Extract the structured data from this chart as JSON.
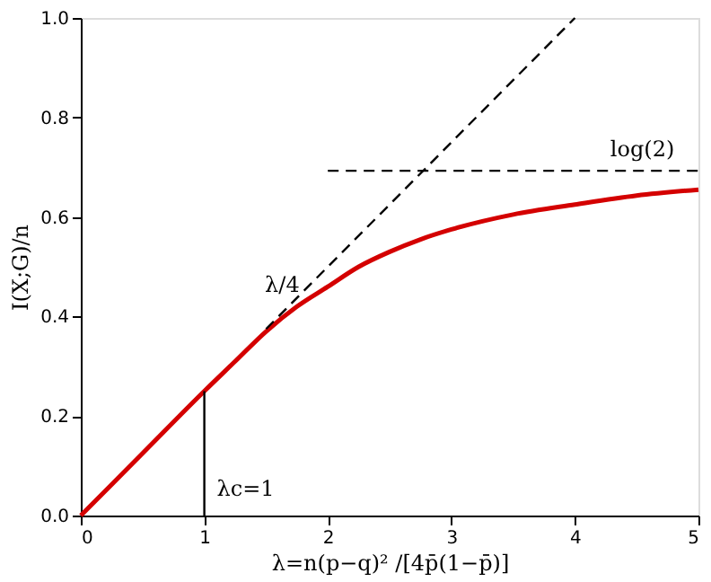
{
  "chart_data": {
    "type": "line",
    "xlabel": "λ=n(p−q)² /[4p̄(1−p̄)]",
    "ylabel": "I(X;G)/n",
    "series": [
      {
        "color": "#d40000",
        "line_style": "solid",
        "x": [
          0,
          0.5,
          1,
          1.25,
          1.5,
          1.75,
          2,
          2.25,
          2.5,
          2.75,
          3,
          3.5,
          4,
          4.5,
          5
        ],
        "values": [
          0,
          0.125,
          0.25,
          0.31,
          0.37,
          0.42,
          0.46,
          0.5,
          0.53,
          0.555,
          0.575,
          0.605,
          0.625,
          0.643,
          0.655
        ]
      },
      {
        "color": "#000000",
        "line_style": "dashed",
        "x": [
          1.5,
          4
        ],
        "values": [
          0.375,
          1.0
        ]
      },
      {
        "color": "#000000",
        "line_style": "dashed",
        "x": [
          2,
          5
        ],
        "values": [
          0.693,
          0.693
        ]
      },
      {
        "color": "#000000",
        "line_style": "solid",
        "x": [
          1,
          1
        ],
        "values": [
          0,
          0.25
        ]
      }
    ],
    "annotations": [
      "λ/4",
      "log(2)",
      "λc=1"
    ],
    "xlim": [
      0,
      5
    ],
    "ylim": [
      0,
      1
    ],
    "xticks": [
      {
        "value": 0,
        "label": "0"
      },
      {
        "value": 1,
        "label": "1"
      },
      {
        "value": 2,
        "label": "2"
      },
      {
        "value": 3,
        "label": "3"
      },
      {
        "value": 4,
        "label": "4"
      },
      {
        "value": 5,
        "label": "5"
      }
    ],
    "yticks": [
      {
        "value": 0,
        "label": "0.0"
      },
      {
        "value": 0.2,
        "label": "0.2"
      },
      {
        "value": 0.4,
        "label": "0.4"
      },
      {
        "value": 0.6,
        "label": "0.6"
      },
      {
        "value": 0.8,
        "label": "0.8"
      },
      {
        "value": 1,
        "label": "1.0"
      }
    ],
    "grid": false
  }
}
